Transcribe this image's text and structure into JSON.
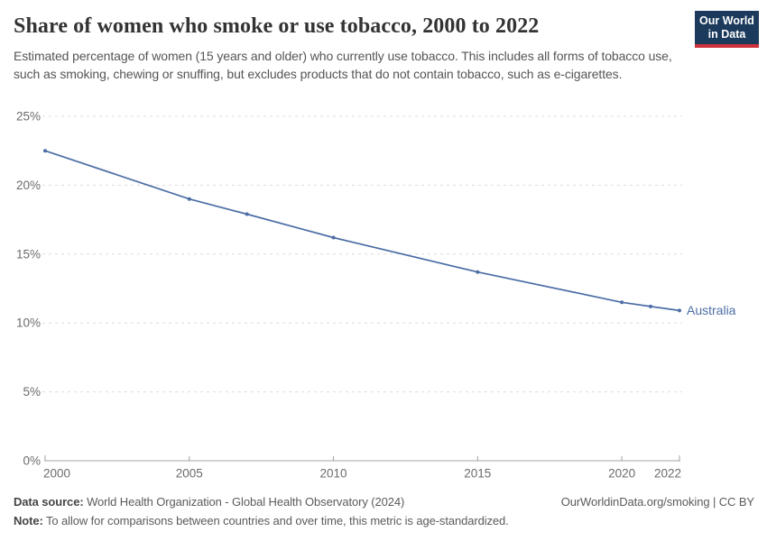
{
  "header": {
    "title": "Share of women who smoke or use tobacco, 2000 to 2022",
    "subtitle": "Estimated percentage of women (15 years and older) who currently use tobacco. This includes all forms of tobacco use, such as smoking, chewing or snuffing, but excludes products that do not contain tobacco, such as e-cigarettes.",
    "logo": {
      "line1": "Our World",
      "line2": "in Data",
      "bg_color": "#1b3a5c",
      "accent_color": "#cd323c"
    }
  },
  "chart_data": {
    "type": "line",
    "title": "Share of women who smoke or use tobacco, 2000 to 2022",
    "xlabel": "",
    "ylabel": "",
    "xlim": [
      2000,
      2022
    ],
    "ylim": [
      0,
      25
    ],
    "grid": "horizontal-dashed",
    "x": [
      2000,
      2005,
      2007,
      2010,
      2015,
      2020,
      2021,
      2022
    ],
    "series": [
      {
        "name": "Australia",
        "color": "#4c6da5",
        "values": [
          22.5,
          19.0,
          17.9,
          16.2,
          13.7,
          11.5,
          11.2,
          10.9
        ]
      }
    ],
    "end_label": "Australia",
    "yticks": [
      {
        "value": 0,
        "label": "0%"
      },
      {
        "value": 5,
        "label": "5%"
      },
      {
        "value": 10,
        "label": "10%"
      },
      {
        "value": 15,
        "label": "15%"
      },
      {
        "value": 20,
        "label": "20%"
      },
      {
        "value": 25,
        "label": "25%"
      }
    ],
    "xticks": [
      {
        "value": 2000,
        "label": "2000"
      },
      {
        "value": 2005,
        "label": "2005"
      },
      {
        "value": 2010,
        "label": "2010"
      },
      {
        "value": 2015,
        "label": "2015"
      },
      {
        "value": 2020,
        "label": "2020"
      },
      {
        "value": 2022,
        "label": "2022"
      }
    ]
  },
  "footer": {
    "datasource_label": "Data source:",
    "datasource_text": " World Health Organization - Global Health Observatory (2024)",
    "link_text": "OurWorldinData.org/smoking | CC BY",
    "note_label": "Note:",
    "note_text": " To allow for comparisons between countries and over time, this metric is age-standardized."
  }
}
